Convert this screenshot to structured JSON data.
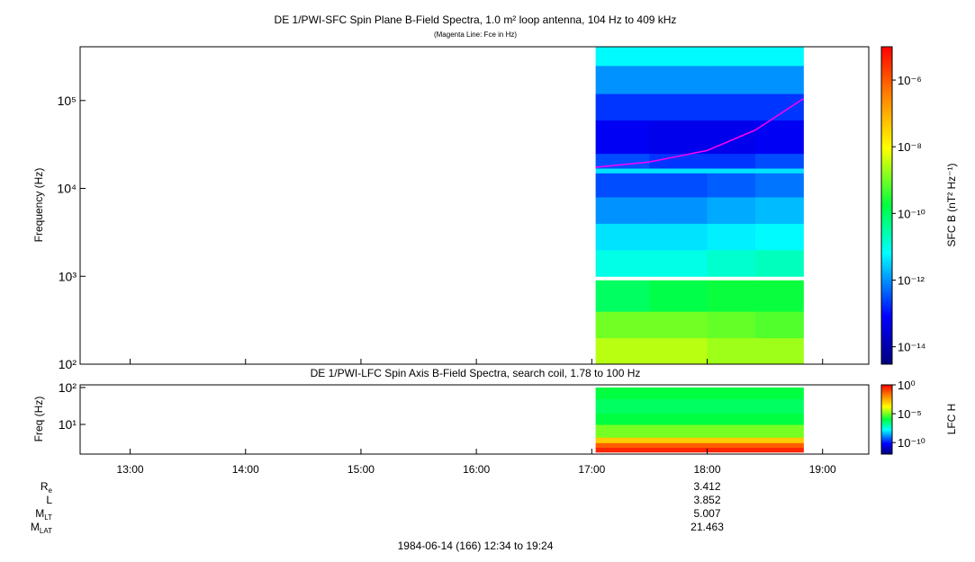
{
  "chart_data": [
    {
      "type": "spectrogram",
      "title": "DE 1/PWI-SFC  Spin Plane B-Field Spectra, 1.0 m² loop antenna, 104 Hz to 409 kHz",
      "subtitle": "(Magenta Line: Fce in Hz)",
      "ylabel": "Frequency (Hz)",
      "xlim": [
        754,
        1164
      ],
      "ylim": [
        100,
        409000
      ],
      "yscale": "log",
      "yticks": [
        {
          "value": 100,
          "label": "10²"
        },
        {
          "value": 1000,
          "label": "10³"
        },
        {
          "value": 10000,
          "label": "10⁴"
        },
        {
          "value": 100000,
          "label": "10⁵"
        }
      ],
      "xedges": [
        1022,
        1050,
        1080,
        1105,
        1130
      ],
      "yedges": [
        100,
        200,
        400,
        900,
        1000,
        2000,
        4000,
        8000,
        15000,
        17000,
        25000,
        60000,
        120000,
        250000,
        409000
      ],
      "z": [
        [
          3e-09,
          3e-09,
          2e-09,
          2e-09
        ],
        [
          1e-09,
          1e-09,
          8e-10,
          6e-10
        ],
        [
          1e-10,
          1.5e-10,
          2e-10,
          2e-10
        ],
        [
          null,
          null,
          null,
          null
        ],
        [
          1e-11,
          1e-11,
          1.5e-11,
          2e-11
        ],
        [
          4e-12,
          4e-12,
          5e-12,
          6e-12
        ],
        [
          1e-12,
          1e-12,
          1.5e-12,
          2e-12
        ],
        [
          3e-13,
          3e-13,
          4e-13,
          6e-13
        ],
        [
          4e-12,
          4e-12,
          4e-12,
          4e-12
        ],
        [
          3e-13,
          2e-13,
          2e-13,
          3e-13
        ],
        [
          6e-14,
          5e-14,
          5e-14,
          6e-14
        ],
        [
          2e-13,
          2e-13,
          2e-13,
          2e-13
        ],
        [
          1e-12,
          1e-12,
          1e-12,
          1e-12
        ],
        [
          6e-12,
          6e-12,
          6e-12,
          6e-12
        ]
      ],
      "colorbar_label": "SFC B (nT² Hz⁻¹)",
      "clim": [
        3e-15,
        1e-05
      ],
      "cticks": [
        {
          "value": 1e-06,
          "label": "10⁻⁶"
        },
        {
          "value": 1e-08,
          "label": "10⁻⁸"
        },
        {
          "value": 1e-10,
          "label": "10⁻¹⁰"
        },
        {
          "value": 1e-12,
          "label": "10⁻¹²"
        },
        {
          "value": 1e-14,
          "label": "10⁻¹⁴"
        }
      ],
      "series": [
        {
          "name": "Fce",
          "color": "#ff00ff",
          "x": [
            1022,
            1050,
            1080,
            1105,
            1130
          ],
          "values": [
            17400,
            20000,
            27000,
            46000,
            105000
          ]
        }
      ]
    },
    {
      "type": "spectrogram",
      "title": "DE 1/PWI-LFC  Spin Axis B-Field Spectra, search coil, 1.78 to 100 Hz",
      "ylabel": "Freq (Hz)",
      "xlim": [
        754,
        1164
      ],
      "ylim": [
        1.57,
        118
      ],
      "yscale": "log",
      "yticks": [
        {
          "value": 10,
          "label": "10¹"
        },
        {
          "value": 100,
          "label": "10²"
        }
      ],
      "xticks": [
        {
          "value": 780,
          "label": "13:00"
        },
        {
          "value": 840,
          "label": "14:00"
        },
        {
          "value": 900,
          "label": "15:00"
        },
        {
          "value": 960,
          "label": "16:00"
        },
        {
          "value": 1020,
          "label": "17:00"
        },
        {
          "value": 1080,
          "label": "18:00"
        },
        {
          "value": 1140,
          "label": "19:00"
        }
      ],
      "xedges": [
        1022,
        1050,
        1080,
        1105,
        1130
      ],
      "yedges": [
        1.78,
        2.4,
        3.2,
        4.5,
        10,
        20,
        50,
        100
      ],
      "z": [
        [
          0.3,
          0.3,
          0.3,
          0.3
        ],
        [
          0.05,
          0.05,
          0.05,
          0.05
        ],
        [
          0.001,
          0.001,
          0.001,
          0.001
        ],
        [
          1e-05,
          1e-05,
          1e-05,
          1e-05
        ],
        [
          1e-06,
          1e-06,
          1e-06,
          1e-06
        ],
        [
          5e-07,
          5e-07,
          5e-07,
          5e-07
        ],
        [
          1e-06,
          1e-06,
          1e-06,
          1e-06
        ]
      ],
      "colorbar_label": "LFC H",
      "clim": [
        1e-12,
        1
      ],
      "cticks": [
        {
          "value": 1,
          "label": "10⁰"
        },
        {
          "value": 1e-05,
          "label": "10⁻⁵"
        },
        {
          "value": 1e-10,
          "label": "10⁻¹⁰"
        }
      ]
    }
  ],
  "ephemeris": [
    {
      "label": "R",
      "sub": "e",
      "value": 3.412
    },
    {
      "label": "L",
      "sub": "",
      "value": 3.852
    },
    {
      "label": "M",
      "sub": "LT",
      "value": 5.007
    },
    {
      "label": "M",
      "sub": "LAT",
      "value": 21.463
    }
  ],
  "footer": "1984-06-14 (166) 12:34 to 19:24"
}
